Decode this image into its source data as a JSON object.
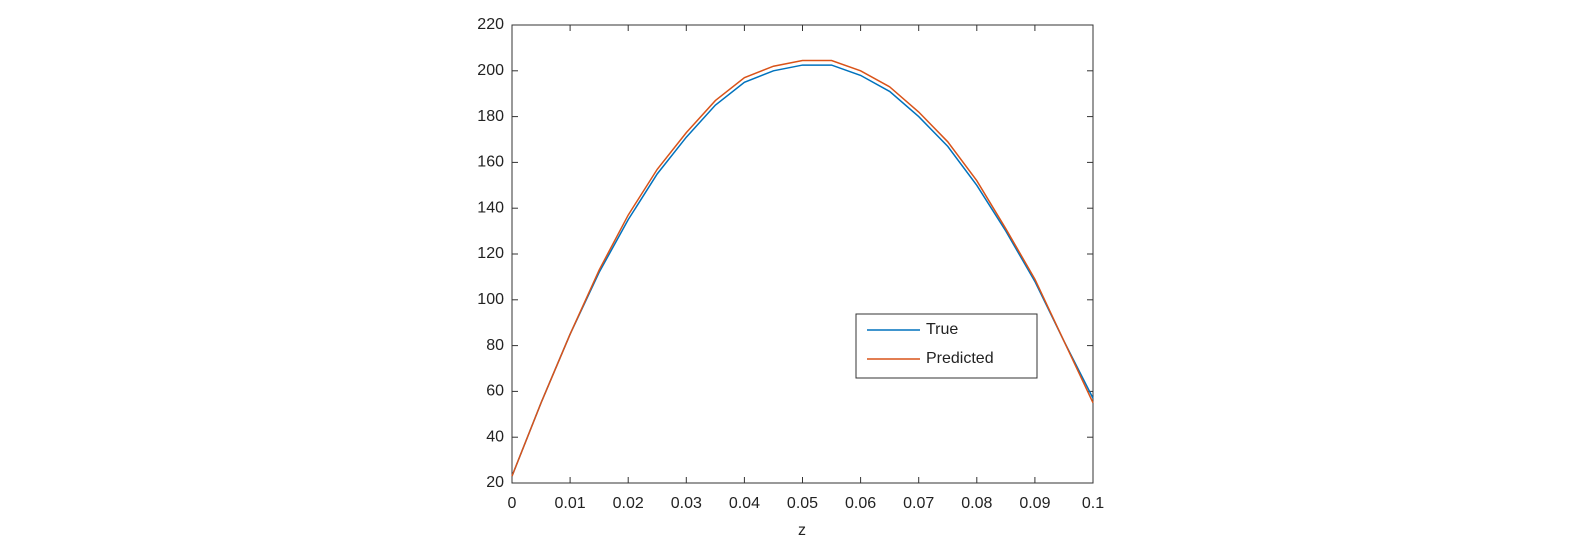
{
  "chart_data": {
    "type": "line",
    "x_label": "z",
    "x": [
      0,
      0.005,
      0.01,
      0.015,
      0.02,
      0.025,
      0.03,
      0.035,
      0.04,
      0.045,
      0.05,
      0.055,
      0.06,
      0.065,
      0.07,
      0.075,
      0.08,
      0.085,
      0.09,
      0.095,
      0.1
    ],
    "series": [
      {
        "name": "True",
        "color": "#0072bd",
        "values": [
          23,
          55,
          85,
          112,
          135,
          155,
          171,
          185,
          195,
          200,
          202.5,
          202.5,
          198,
          191,
          180,
          167,
          150,
          130,
          108,
          82,
          57
        ]
      },
      {
        "name": "Predicted",
        "color": "#d95319",
        "values": [
          23,
          55,
          85,
          113,
          137,
          157,
          173,
          187,
          197,
          202,
          204.5,
          204.5,
          200,
          193,
          182,
          169,
          152,
          131,
          109,
          82,
          55
        ]
      }
    ],
    "xlim": [
      0,
      0.1
    ],
    "xticks": [
      0,
      0.01,
      0.02,
      0.03,
      0.04,
      0.05,
      0.06,
      0.07,
      0.08,
      0.09,
      0.1
    ],
    "ylim": [
      20,
      220
    ],
    "yticks": [
      20,
      40,
      60,
      80,
      100,
      120,
      140,
      160,
      180,
      200,
      220
    ],
    "grid": false,
    "legend_position": "right"
  }
}
